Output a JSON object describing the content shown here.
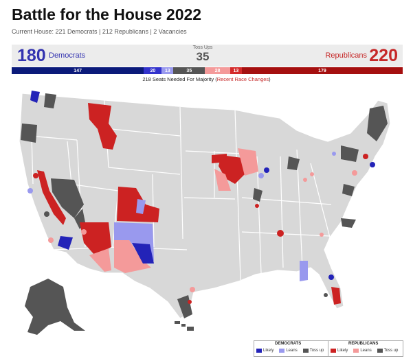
{
  "header": {
    "title": "Battle for the House 2022",
    "subtitle": "Current House: 221 Democrats | 212 Republicans | 2 Vacancies"
  },
  "tally": {
    "dem_count": "180",
    "dem_label": "Democrats",
    "toss_label": "Toss Ups",
    "toss_count": "35",
    "rep_label": "Republicans",
    "rep_count": "220"
  },
  "bar": [
    {
      "label": "147",
      "seats": 147,
      "color": "#0b1a7a"
    },
    {
      "label": "20",
      "seats": 20,
      "color": "#3333cc"
    },
    {
      "label": "13",
      "seats": 13,
      "color": "#9999ee"
    },
    {
      "label": "35",
      "seats": 35,
      "color": "#555555"
    },
    {
      "label": "28",
      "seats": 28,
      "color": "#f49a9a"
    },
    {
      "label": "13",
      "seats": 13,
      "color": "#d42a2a"
    },
    {
      "label": "179",
      "seats": 179,
      "color": "#a50f0f"
    }
  ],
  "majority": {
    "text": "218 Seats Needed For Majority (",
    "link": "Recent Race Changes",
    "close": ")"
  },
  "legend": {
    "dem_header": "DEMOCRATS",
    "rep_header": "REPUBLICANS",
    "items": [
      "Likely",
      "Leans",
      "Toss up"
    ],
    "dem_colors": [
      "#2323b8",
      "#9999ee",
      "#555555"
    ],
    "rep_colors": [
      "#cc2222",
      "#f49a9a",
      "#555555"
    ]
  },
  "map_colors": {
    "base": "#d8d8d8",
    "dem_likely": "#2323b8",
    "dem_leans": "#9999ee",
    "toss_up": "#555555",
    "rep_likely": "#cc2222",
    "rep_leans": "#f49a9a"
  }
}
